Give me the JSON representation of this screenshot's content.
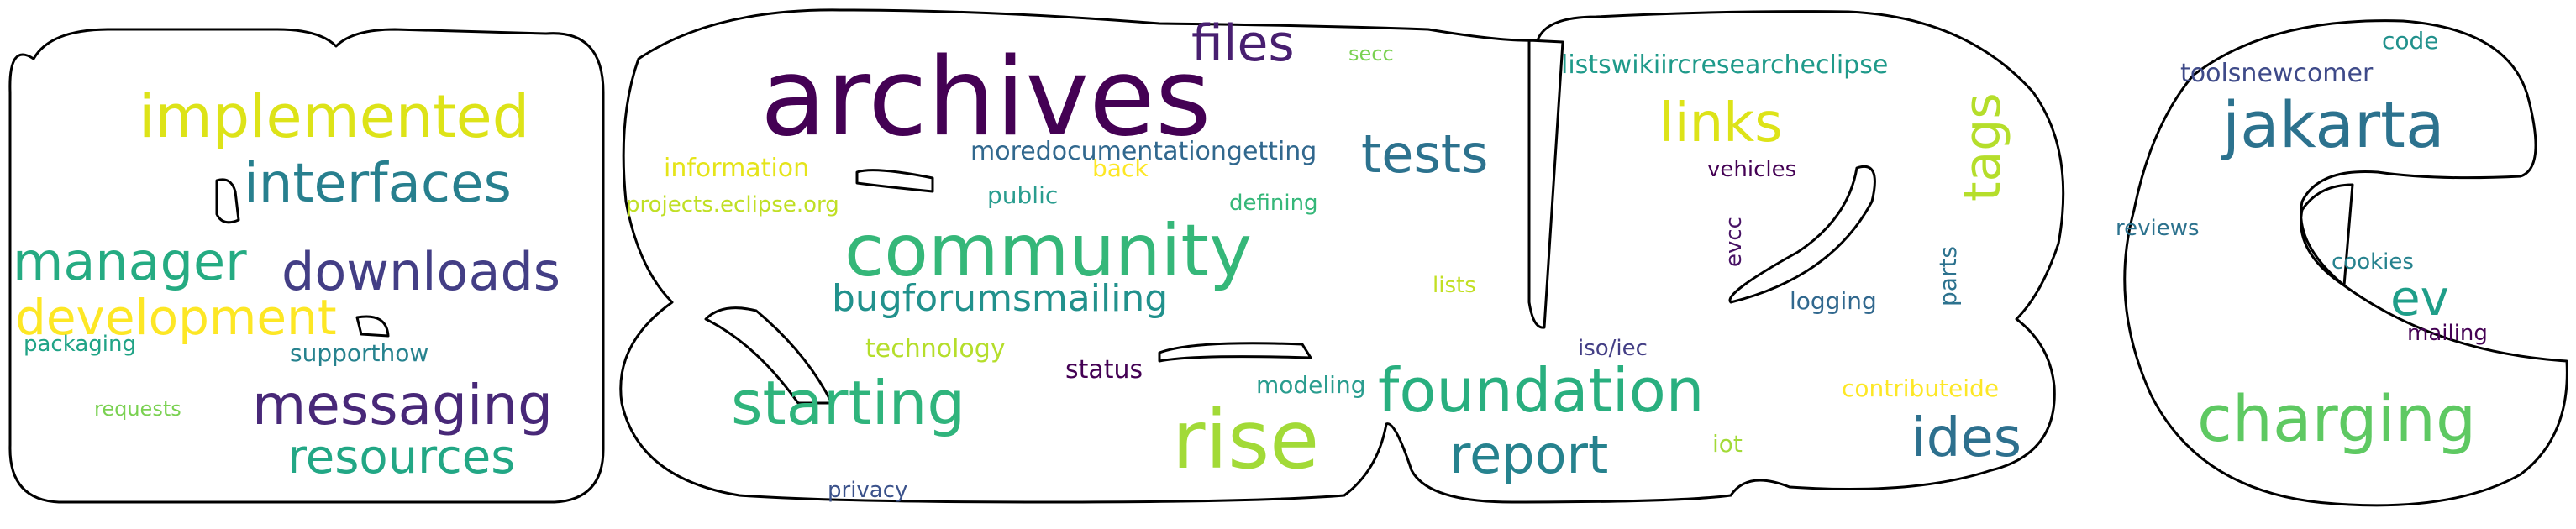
{
  "palette": {
    "purple_dark": "#440154",
    "indigo": "#472f7d",
    "blue": "#3b528b",
    "teal_blue": "#2c728e",
    "teal": "#21918c",
    "green_teal": "#28ae80",
    "green": "#5ec962",
    "lime": "#addc30",
    "yellow": "#e3e418"
  },
  "words": [
    {
      "text": "archives",
      "color": "#440154"
    },
    {
      "text": "community",
      "color": "#35b779"
    },
    {
      "text": "rise",
      "color": "#a2da37"
    },
    {
      "text": "foundation",
      "color": "#29af7f"
    },
    {
      "text": "starting",
      "color": "#2fb47c"
    },
    {
      "text": "charging",
      "color": "#5ec962"
    },
    {
      "text": "jakarta",
      "color": "#2c728e"
    },
    {
      "text": "implemented",
      "color": "#dde318"
    },
    {
      "text": "interfaces",
      "color": "#277f8e"
    },
    {
      "text": "manager",
      "color": "#25ab82"
    },
    {
      "text": "downloads",
      "color": "#433e85"
    },
    {
      "text": "development",
      "color": "#fde725"
    },
    {
      "text": "messaging",
      "color": "#482878"
    },
    {
      "text": "resources",
      "color": "#22a785"
    },
    {
      "text": "files",
      "color": "#481f70"
    },
    {
      "text": "tests",
      "color": "#2c728e"
    },
    {
      "text": "links",
      "color": "#dde318"
    },
    {
      "text": "tags",
      "color": "#b5de2b"
    },
    {
      "text": "report",
      "color": "#26828e"
    },
    {
      "text": "ides",
      "color": "#2d708e"
    },
    {
      "text": "ev",
      "color": "#1f9e89"
    },
    {
      "text": "bugforumsmailing",
      "color": "#21918c"
    },
    {
      "text": "moredocumentationgetting",
      "color": "#31688e"
    },
    {
      "text": "listswikiircresearcheclipse",
      "color": "#1f9a8a"
    },
    {
      "text": "toolsnewcomer",
      "color": "#3e4a89"
    },
    {
      "text": "information",
      "color": "#e5e419"
    },
    {
      "text": "projects.eclipse.org",
      "color": "#c0df25"
    },
    {
      "text": "public",
      "color": "#2a9d8f"
    },
    {
      "text": "back",
      "color": "#fde725"
    },
    {
      "text": "defining",
      "color": "#35b779"
    },
    {
      "text": "secc",
      "color": "#7ad151"
    },
    {
      "text": "technology",
      "color": "#b5de2b"
    },
    {
      "text": "status",
      "color": "#440154"
    },
    {
      "text": "modeling",
      "color": "#2a9d8f"
    },
    {
      "text": "privacy",
      "color": "#3b528b"
    },
    {
      "text": "supporthow",
      "color": "#26828e"
    },
    {
      "text": "packaging",
      "color": "#20a386"
    },
    {
      "text": "requests",
      "color": "#7ad151"
    },
    {
      "text": "vehicles",
      "color": "#440154"
    },
    {
      "text": "evcc",
      "color": "#471164"
    },
    {
      "text": "parts",
      "color": "#2c728e"
    },
    {
      "text": "logging",
      "color": "#31688e"
    },
    {
      "text": "lists",
      "color": "#c2df23"
    },
    {
      "text": "iso/iec",
      "color": "#433e85"
    },
    {
      "text": "contributeide",
      "color": "#fde725"
    },
    {
      "text": "iot",
      "color": "#a2da37"
    },
    {
      "text": "code",
      "color": "#21918c"
    },
    {
      "text": "reviews",
      "color": "#2c728e"
    },
    {
      "text": "cookies",
      "color": "#26828e"
    },
    {
      "text": "mailing",
      "color": "#440154"
    }
  ]
}
